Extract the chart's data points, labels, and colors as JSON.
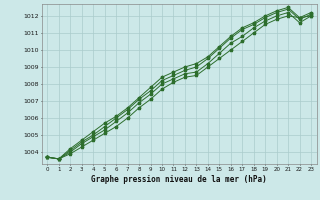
{
  "title": "Graphe pression niveau de la mer (hPa)",
  "bg_color": "#cce8e8",
  "grid_color": "#aacccc",
  "line_color": "#2d6e2d",
  "xlim": [
    -0.5,
    23.5
  ],
  "ylim": [
    1003.3,
    1012.7
  ],
  "yticks": [
    1004,
    1005,
    1006,
    1007,
    1008,
    1009,
    1010,
    1011,
    1012
  ],
  "xticks": [
    0,
    1,
    2,
    3,
    4,
    5,
    6,
    7,
    8,
    9,
    10,
    11,
    12,
    13,
    14,
    15,
    16,
    17,
    18,
    19,
    20,
    21,
    22,
    23
  ],
  "series": [
    [
      1003.7,
      1003.6,
      1003.9,
      1004.3,
      1004.7,
      1005.1,
      1005.5,
      1006.0,
      1006.6,
      1007.1,
      1007.7,
      1008.1,
      1008.4,
      1008.5,
      1009.0,
      1009.5,
      1010.0,
      1010.5,
      1011.0,
      1011.5,
      1011.8,
      1012.0,
      1011.9,
      1012.0
    ],
    [
      1003.7,
      1003.6,
      1004.0,
      1004.5,
      1004.9,
      1005.3,
      1005.8,
      1006.3,
      1006.9,
      1007.4,
      1008.0,
      1008.3,
      1008.6,
      1008.7,
      1009.2,
      1009.8,
      1010.4,
      1010.8,
      1011.3,
      1011.7,
      1012.0,
      1012.2,
      1011.6,
      1012.0
    ],
    [
      1003.7,
      1003.6,
      1004.1,
      1004.6,
      1005.0,
      1005.5,
      1006.0,
      1006.5,
      1007.1,
      1007.6,
      1008.2,
      1008.5,
      1008.8,
      1009.0,
      1009.5,
      1010.1,
      1010.7,
      1011.2,
      1011.5,
      1011.9,
      1012.2,
      1012.4,
      1011.8,
      1012.1
    ],
    [
      1003.7,
      1003.6,
      1004.2,
      1004.7,
      1005.2,
      1005.7,
      1006.1,
      1006.6,
      1007.2,
      1007.8,
      1008.4,
      1008.7,
      1009.0,
      1009.2,
      1009.6,
      1010.2,
      1010.8,
      1011.3,
      1011.6,
      1012.0,
      1012.3,
      1012.5,
      1011.9,
      1012.2
    ]
  ]
}
